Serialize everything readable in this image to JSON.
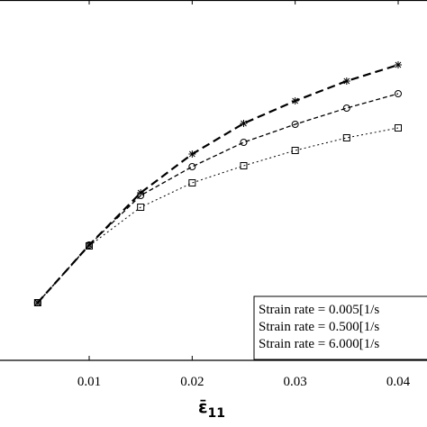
{
  "chart_data": {
    "type": "line",
    "x_label": "ε̄",
    "x_label_subscript": "11",
    "xlim": [
      0.00134,
      0.0428
    ],
    "ylim": [
      0,
      100
    ],
    "xticks": [
      0.01,
      0.02,
      0.03,
      0.04
    ],
    "x": [
      0.005,
      0.01,
      0.015,
      0.02,
      0.025,
      0.03,
      0.035,
      0.04
    ],
    "series": [
      {
        "name": "Strain rate = 0.005[1/s",
        "color": "#000000",
        "marker": "square",
        "dash": "2,3",
        "width": 1,
        "values": [
          16,
          31.75,
          42.5,
          49.25,
          54,
          58.25,
          61.75,
          64.5
        ]
      },
      {
        "name": "Strain rate = 0.500[1/s",
        "color": "#000000",
        "marker": "circle",
        "dash": "5,3",
        "width": 1.3,
        "values": [
          16,
          32,
          45.75,
          53.75,
          60.5,
          65.5,
          70,
          74
        ]
      },
      {
        "name": "Strain rate = 6.000[1/s",
        "color": "#000000",
        "marker": "star",
        "dash": "9,5",
        "width": 2.2,
        "values": [
          16,
          32,
          46.5,
          57.25,
          65.75,
          72,
          77.5,
          82
        ]
      }
    ]
  }
}
